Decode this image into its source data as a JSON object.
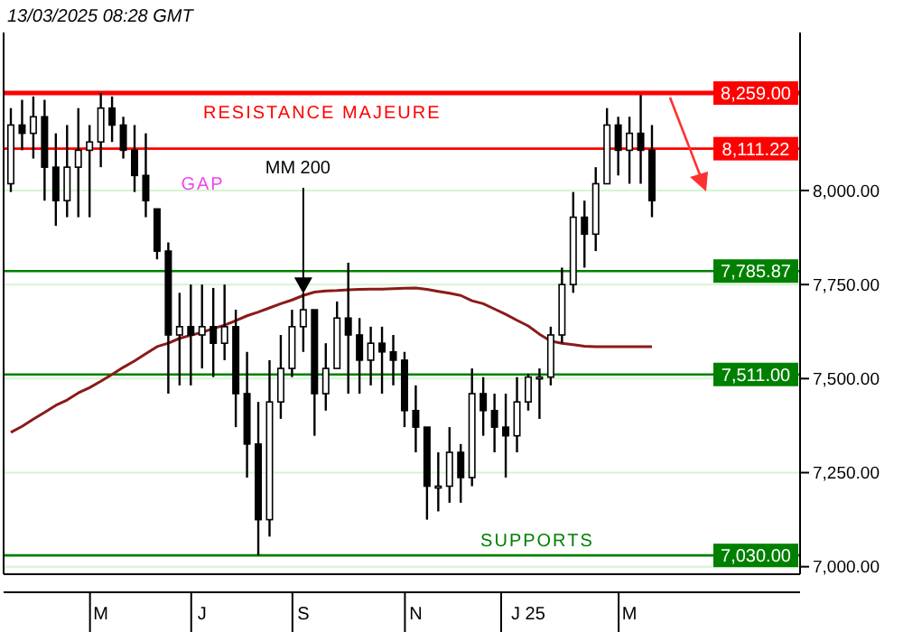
{
  "chart_data": {
    "type": "candlestick",
    "title": "13/03/2025 08:28 GMT",
    "categories": [
      null,
      null,
      null,
      null,
      null,
      null,
      null,
      null,
      "M",
      null,
      null,
      null,
      null,
      null,
      null,
      null,
      null,
      "J",
      null,
      null,
      null,
      null,
      null,
      null,
      null,
      null,
      "S",
      null,
      null,
      null,
      null,
      null,
      null,
      null,
      null,
      null,
      "N",
      null,
      null,
      null,
      null,
      null,
      null,
      null,
      null,
      null,
      "J 25",
      null,
      null,
      null,
      null,
      null,
      null,
      null,
      null,
      "M",
      null,
      null
    ],
    "ohlc": [
      [
        8018,
        8219,
        7996,
        8174
      ],
      [
        8174,
        8241,
        8107,
        8152
      ],
      [
        8152,
        8250,
        8085,
        8196
      ],
      [
        8196,
        8241,
        7973,
        8062
      ],
      [
        8062,
        8152,
        7906,
        7973
      ],
      [
        7973,
        8174,
        7929,
        8062
      ],
      [
        8062,
        8219,
        7929,
        8107
      ],
      [
        8107,
        8174,
        7929,
        8129
      ],
      [
        8129,
        8259,
        8062,
        8219
      ],
      [
        8219,
        8250,
        8129,
        8174
      ],
      [
        8174,
        8196,
        8085,
        8107
      ],
      [
        8107,
        8174,
        7996,
        8040
      ],
      [
        8040,
        8152,
        7929,
        7973
      ],
      [
        7951,
        7951,
        7817,
        7839
      ],
      [
        7839,
        7862,
        7460,
        7616
      ],
      [
        7616,
        7728,
        7482,
        7638
      ],
      [
        7638,
        7750,
        7482,
        7616
      ],
      [
        7616,
        7750,
        7527,
        7638
      ],
      [
        7638,
        7741,
        7504,
        7594
      ],
      [
        7594,
        7750,
        7549,
        7638
      ],
      [
        7638,
        7683,
        7371,
        7460
      ],
      [
        7460,
        7571,
        7237,
        7326
      ],
      [
        7326,
        7438,
        7030,
        7125
      ],
      [
        7125,
        7549,
        7080,
        7438
      ],
      [
        7438,
        7616,
        7393,
        7527
      ],
      [
        7527,
        7683,
        7504,
        7638
      ],
      [
        7638,
        7728,
        7571,
        7683
      ],
      [
        7683,
        7683,
        7348,
        7460
      ],
      [
        7460,
        7594,
        7415,
        7527
      ],
      [
        7527,
        7705,
        7527,
        7661
      ],
      [
        7661,
        7808,
        7460,
        7616
      ],
      [
        7616,
        7661,
        7460,
        7549
      ],
      [
        7549,
        7638,
        7482,
        7594
      ],
      [
        7594,
        7638,
        7460,
        7571
      ],
      [
        7571,
        7616,
        7482,
        7549
      ],
      [
        7549,
        7571,
        7371,
        7415
      ],
      [
        7415,
        7482,
        7304,
        7371
      ],
      [
        7371,
        7371,
        7125,
        7214
      ],
      [
        7214,
        7304,
        7147,
        7214
      ],
      [
        7214,
        7371,
        7170,
        7304
      ],
      [
        7304,
        7326,
        7170,
        7237
      ],
      [
        7237,
        7527,
        7214,
        7460
      ],
      [
        7460,
        7504,
        7348,
        7415
      ],
      [
        7415,
        7460,
        7304,
        7371
      ],
      [
        7371,
        7460,
        7237,
        7348
      ],
      [
        7348,
        7504,
        7304,
        7438
      ],
      [
        7438,
        7513,
        7415,
        7504
      ],
      [
        7504,
        7527,
        7393,
        7504
      ],
      [
        7504,
        7638,
        7482,
        7616
      ],
      [
        7616,
        7795,
        7594,
        7750
      ],
      [
        7750,
        7996,
        7728,
        7929
      ],
      [
        7929,
        7973,
        7795,
        7884
      ],
      [
        7884,
        8062,
        7839,
        8018
      ],
      [
        8018,
        8219,
        8018,
        8174
      ],
      [
        8174,
        8196,
        8040,
        8107
      ],
      [
        8107,
        8196,
        8018,
        8152
      ],
      [
        8152,
        8254,
        8018,
        8107
      ],
      [
        8107,
        8174,
        7929,
        7973
      ]
    ],
    "color": "#000000",
    "series": [
      {
        "type": "line",
        "name": "MM 200",
        "color": "#8b1a1a",
        "values": [
          7357,
          7373,
          7392,
          7410,
          7429,
          7443,
          7462,
          7476,
          7493,
          7511,
          7530,
          7547,
          7566,
          7585,
          7594,
          7607,
          7615,
          7623,
          7633,
          7642,
          7654,
          7667,
          7677,
          7688,
          7699,
          7709,
          7721,
          7730,
          7733,
          7734,
          7736,
          7737,
          7738,
          7738,
          7739,
          7740,
          7741,
          7737,
          7732,
          7727,
          7721,
          7707,
          7699,
          7685,
          7671,
          7655,
          7640,
          7618,
          7600,
          7594,
          7590,
          7586,
          7585,
          7585,
          7585,
          7585,
          7585,
          7585
        ]
      }
    ],
    "ylim": [
      6980,
      8420
    ],
    "yticks": [
      {
        "value": 7000,
        "label": "7,000.00"
      },
      {
        "value": 7250,
        "label": "7,250.00"
      },
      {
        "value": 7500,
        "label": "7,500.00"
      },
      {
        "value": 7750,
        "label": "7,750.00"
      },
      {
        "value": 8000,
        "label": "8,000.00"
      }
    ],
    "grid": "y",
    "ref_lines": [
      {
        "axis": "y",
        "value": 8259,
        "label": "8,259.00",
        "color": "#ff0000"
      },
      {
        "axis": "y",
        "value": 8111.22,
        "label": "8,111.22",
        "color": "#ff0000"
      },
      {
        "axis": "y",
        "value": 7785.87,
        "label": "7,785.87",
        "color": "#008000"
      },
      {
        "axis": "y",
        "value": 7511,
        "label": "7,511.00",
        "color": "#008000"
      },
      {
        "axis": "y",
        "value": 7030,
        "label": "7,030.00",
        "color": "#008000"
      }
    ],
    "annotations": [
      {
        "text": "RESISTANCE MAJEURE",
        "y": 8259
      },
      {
        "text": "SUPPORTS",
        "y": 7030
      },
      "GAP"
    ]
  }
}
